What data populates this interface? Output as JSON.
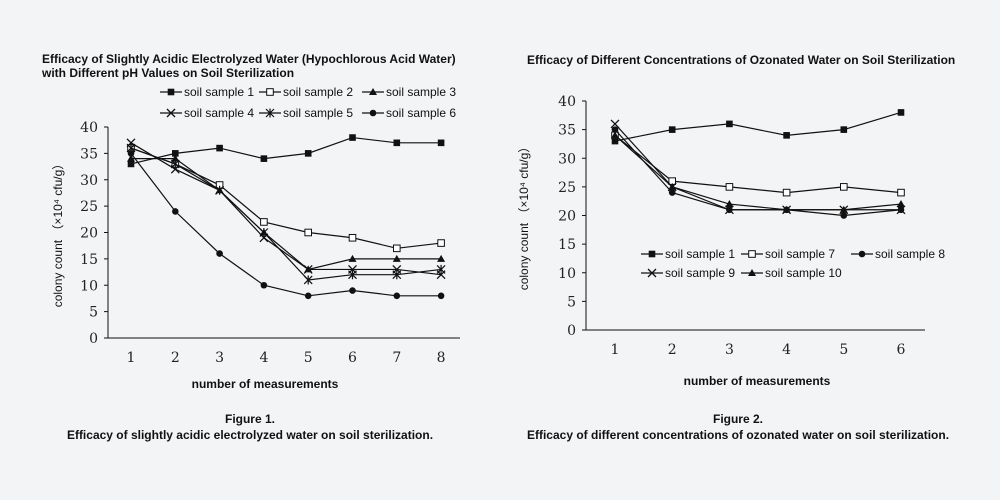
{
  "colors": {
    "background": "#f3f4f6",
    "ink": "#111111"
  },
  "figure1": {
    "caption_line1": "Figure 1.",
    "caption_line2": "Efficacy of slightly acidic electrolyzed water on soil sterilization."
  },
  "figure2": {
    "caption_line1": "Figure 2.",
    "caption_line2": "Efficacy of different concentrations of ozonated water on soil sterilization."
  },
  "chart_data": [
    {
      "type": "line",
      "title_line1": "Efficacy of Slightly Acidic Electrolyzed Water (Hypochlorous Acid Water)",
      "title_line2": "with Different pH Values on Soil Sterilization",
      "xlabel": "number of measurements",
      "ylabel": "colony count （×10⁴ cfu/g）",
      "x": [
        1,
        2,
        3,
        4,
        5,
        6,
        7,
        8
      ],
      "ylim": [
        0,
        40
      ],
      "yticks": [
        0,
        5,
        10,
        15,
        20,
        25,
        30,
        35,
        40
      ],
      "grid": false,
      "legend_position": "top",
      "series": [
        {
          "name": "soil sample 1",
          "marker": "square-filled",
          "values": [
            33,
            35,
            36,
            34,
            35,
            38,
            37,
            37
          ]
        },
        {
          "name": "soil sample 2",
          "marker": "square-open",
          "values": [
            36,
            33,
            29,
            22,
            20,
            19,
            17,
            18
          ]
        },
        {
          "name": "soil sample 3",
          "marker": "triangle-filled",
          "values": [
            34,
            34,
            28,
            20,
            13,
            15,
            15,
            15
          ]
        },
        {
          "name": "soil sample 4",
          "marker": "x",
          "values": [
            37,
            32,
            28,
            19,
            13,
            13,
            13,
            12
          ]
        },
        {
          "name": "soil sample 5",
          "marker": "star",
          "values": [
            36,
            33,
            28,
            20,
            11,
            12,
            12,
            13
          ]
        },
        {
          "name": "soil sample 6",
          "marker": "circle-filled",
          "values": [
            35,
            24,
            16,
            10,
            8,
            9,
            8,
            8
          ]
        }
      ]
    },
    {
      "type": "line",
      "title_line1": "Efficacy of Different Concentrations of Ozonated Water on Soil Sterilization",
      "title_line2": "",
      "xlabel": "number of measurements",
      "ylabel": "colony count （×10⁴ cfu/g）",
      "x": [
        1,
        2,
        3,
        4,
        5,
        6
      ],
      "ylim": [
        0,
        40
      ],
      "yticks": [
        0,
        5,
        10,
        15,
        20,
        25,
        30,
        35,
        40
      ],
      "grid": false,
      "legend_position": "center",
      "series": [
        {
          "name": "soil sample 1",
          "marker": "square-filled",
          "values": [
            33,
            35,
            36,
            34,
            35,
            38
          ]
        },
        {
          "name": "soil sample 7",
          "marker": "square-open",
          "values": [
            34,
            26,
            25,
            24,
            25,
            24
          ]
        },
        {
          "name": "soil sample 8",
          "marker": "circle-filled",
          "values": [
            35,
            24,
            21,
            21,
            20,
            21
          ]
        },
        {
          "name": "soil sample 9",
          "marker": "x",
          "values": [
            36,
            25,
            21,
            21,
            21,
            21
          ]
        },
        {
          "name": "soil sample 10",
          "marker": "triangle-filled",
          "values": [
            34,
            25,
            22,
            21,
            21,
            22
          ]
        }
      ]
    }
  ]
}
